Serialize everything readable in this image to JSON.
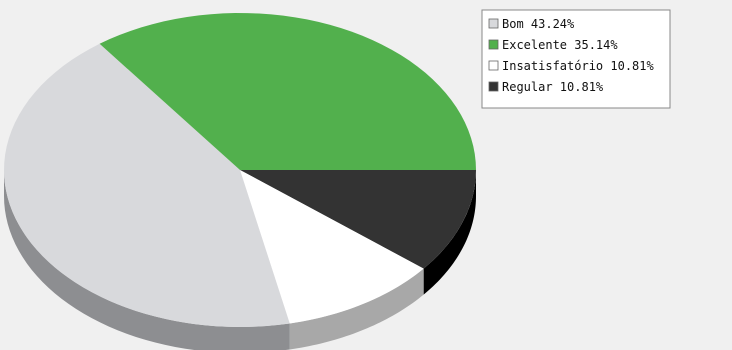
{
  "chart_data": {
    "type": "pie",
    "style": "3d",
    "title": "",
    "legend_position": "top-right",
    "slices": [
      {
        "label": "Bom 43.24%",
        "value": 43.24,
        "color": "#d8d9dc",
        "side_color": "#8d8e91"
      },
      {
        "label": "Excelente 35.14%",
        "value": 35.14,
        "color": "#52b04d",
        "side_color": "#2f7a2b"
      },
      {
        "label": "Insatisfatório 10.81%",
        "value": 10.81,
        "color": "#ffffff",
        "side_color": "#a8a8a8"
      },
      {
        "label": "Regular 10.81%",
        "value": 10.81,
        "color": "#333333",
        "side_color": "#000000"
      }
    ]
  },
  "colors": {
    "plot_background": "#f0f0f0",
    "legend_background": "#ffffff",
    "legend_border": "#888888"
  }
}
